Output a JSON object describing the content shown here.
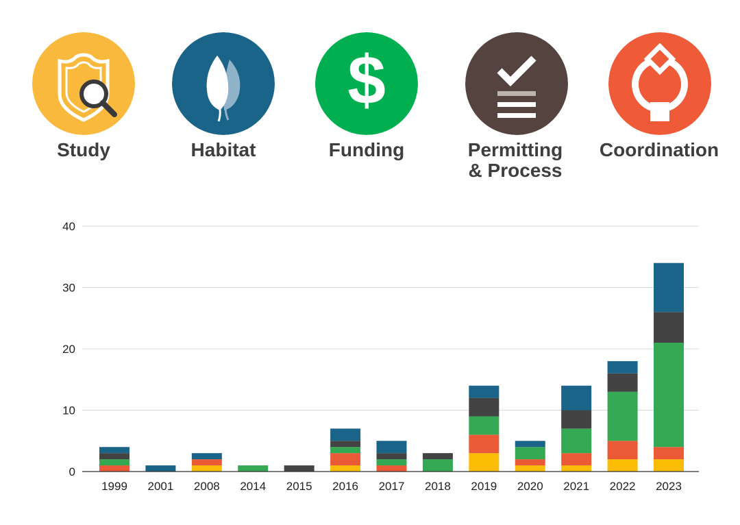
{
  "legend": [
    {
      "key": "study",
      "label": "Study",
      "color": "#F8B93C",
      "icon": "shield-magnifier-icon"
    },
    {
      "key": "habitat",
      "label": "Habitat",
      "color": "#1A6389",
      "icon": "leaf-icon"
    },
    {
      "key": "funding",
      "label": "Funding",
      "color": "#00B050",
      "icon": "dollar-icon"
    },
    {
      "key": "permitting",
      "label": "Permitting\n& Process",
      "color": "#54433E",
      "icon": "checklist-icon"
    },
    {
      "key": "coordination",
      "label": "Coordination",
      "color": "#EF5A38",
      "icon": "cycle-arrows-icon"
    }
  ],
  "chart_data": {
    "type": "bar",
    "stacked": true,
    "categories": [
      "1999",
      "2001",
      "2008",
      "2014",
      "2015",
      "2016",
      "2017",
      "2018",
      "2019",
      "2020",
      "2021",
      "2022",
      "2023"
    ],
    "series": [
      {
        "key": "study",
        "color": "#FBBC04",
        "values": [
          0,
          0,
          1,
          0,
          0,
          1,
          0,
          0,
          3,
          1,
          1,
          2,
          2
        ]
      },
      {
        "key": "coordination",
        "color": "#EA5A37",
        "values": [
          1,
          0,
          1,
          0,
          0,
          2,
          1,
          0,
          3,
          1,
          2,
          3,
          2
        ]
      },
      {
        "key": "funding",
        "color": "#34A853",
        "values": [
          1,
          0,
          0,
          1,
          0,
          1,
          1,
          2,
          3,
          2,
          4,
          8,
          17
        ]
      },
      {
        "key": "permitting",
        "color": "#434343",
        "values": [
          1,
          0,
          0,
          0,
          1,
          1,
          1,
          1,
          3,
          0,
          3,
          3,
          5
        ]
      },
      {
        "key": "habitat",
        "color": "#1B6489",
        "values": [
          1,
          1,
          1,
          0,
          0,
          2,
          2,
          0,
          2,
          1,
          4,
          2,
          8
        ]
      }
    ],
    "ylim": [
      0,
      40
    ],
    "yticks": [
      0,
      10,
      20,
      30,
      40
    ],
    "grid": true
  }
}
